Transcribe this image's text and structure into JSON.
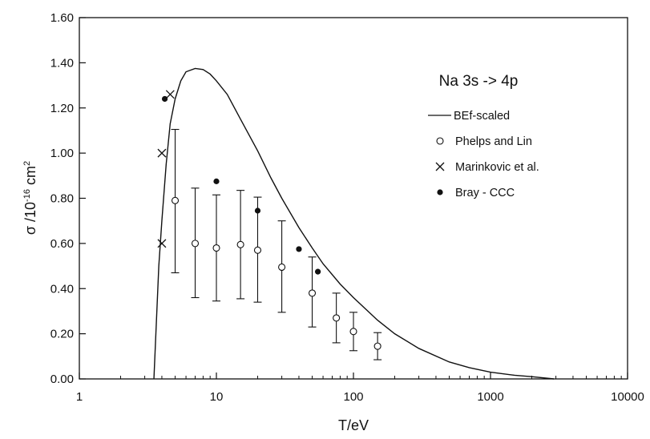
{
  "chart_data": {
    "type": "scatter",
    "title": "Na 3s -> 4p",
    "xlabel": "T/eV",
    "ylabel": "σ /10⁻¹⁶ cm²",
    "ylabel_parts": {
      "sym": "σ /10",
      "exp": "-16",
      "unit": " cm",
      "unit_exp": "2"
    },
    "xscale": "log",
    "xlim": [
      1,
      10000
    ],
    "ylim": [
      0,
      1.6
    ],
    "xticks": [
      "1",
      "10",
      "100",
      "1000",
      "10000"
    ],
    "yticks": [
      "0.00",
      "0.20",
      "0.40",
      "0.60",
      "0.80",
      "1.00",
      "1.20",
      "1.40",
      "1.60"
    ],
    "grid": false,
    "legend_position": "right",
    "series": [
      {
        "name": "BEf-scaled",
        "kind": "line",
        "points": [
          [
            3.5,
            0.0
          ],
          [
            3.8,
            0.5
          ],
          [
            4.0,
            0.7
          ],
          [
            4.3,
            0.95
          ],
          [
            4.6,
            1.13
          ],
          [
            5.0,
            1.24
          ],
          [
            5.5,
            1.32
          ],
          [
            6.0,
            1.36
          ],
          [
            7.0,
            1.375
          ],
          [
            8.0,
            1.37
          ],
          [
            9.0,
            1.35
          ],
          [
            10,
            1.32
          ],
          [
            12,
            1.26
          ],
          [
            15,
            1.15
          ],
          [
            20,
            1.01
          ],
          [
            25,
            0.89
          ],
          [
            30,
            0.8
          ],
          [
            40,
            0.67
          ],
          [
            50,
            0.58
          ],
          [
            60,
            0.51
          ],
          [
            80,
            0.42
          ],
          [
            100,
            0.36
          ],
          [
            150,
            0.26
          ],
          [
            200,
            0.2
          ],
          [
            300,
            0.135
          ],
          [
            500,
            0.075
          ],
          [
            700,
            0.05
          ],
          [
            1000,
            0.03
          ],
          [
            1500,
            0.016
          ],
          [
            2000,
            0.01
          ],
          [
            2900,
            0.0
          ]
        ]
      },
      {
        "name": "Phelps and Lin",
        "kind": "open-circle",
        "points": [
          [
            5.0,
            0.79,
            0.47,
            1.105
          ],
          [
            7.0,
            0.6,
            0.36,
            0.845
          ],
          [
            10,
            0.58,
            0.345,
            0.815
          ],
          [
            15,
            0.595,
            0.355,
            0.835
          ],
          [
            20,
            0.57,
            0.34,
            0.805
          ],
          [
            30,
            0.495,
            0.295,
            0.7
          ],
          [
            50,
            0.38,
            0.23,
            0.54
          ],
          [
            75,
            0.27,
            0.16,
            0.38
          ],
          [
            100,
            0.21,
            0.125,
            0.295
          ],
          [
            150,
            0.145,
            0.085,
            0.205
          ]
        ]
      },
      {
        "name": "Marinkovic et al.",
        "kind": "cross",
        "points": [
          [
            4.0,
            0.6
          ],
          [
            4.0,
            1.0
          ],
          [
            4.6,
            1.26
          ]
        ]
      },
      {
        "name": "Bray - CCC",
        "kind": "filled-circle",
        "points": [
          [
            4.2,
            1.24
          ],
          [
            10,
            0.875
          ],
          [
            20,
            0.745
          ],
          [
            40,
            0.575
          ],
          [
            55,
            0.475
          ]
        ]
      }
    ]
  }
}
